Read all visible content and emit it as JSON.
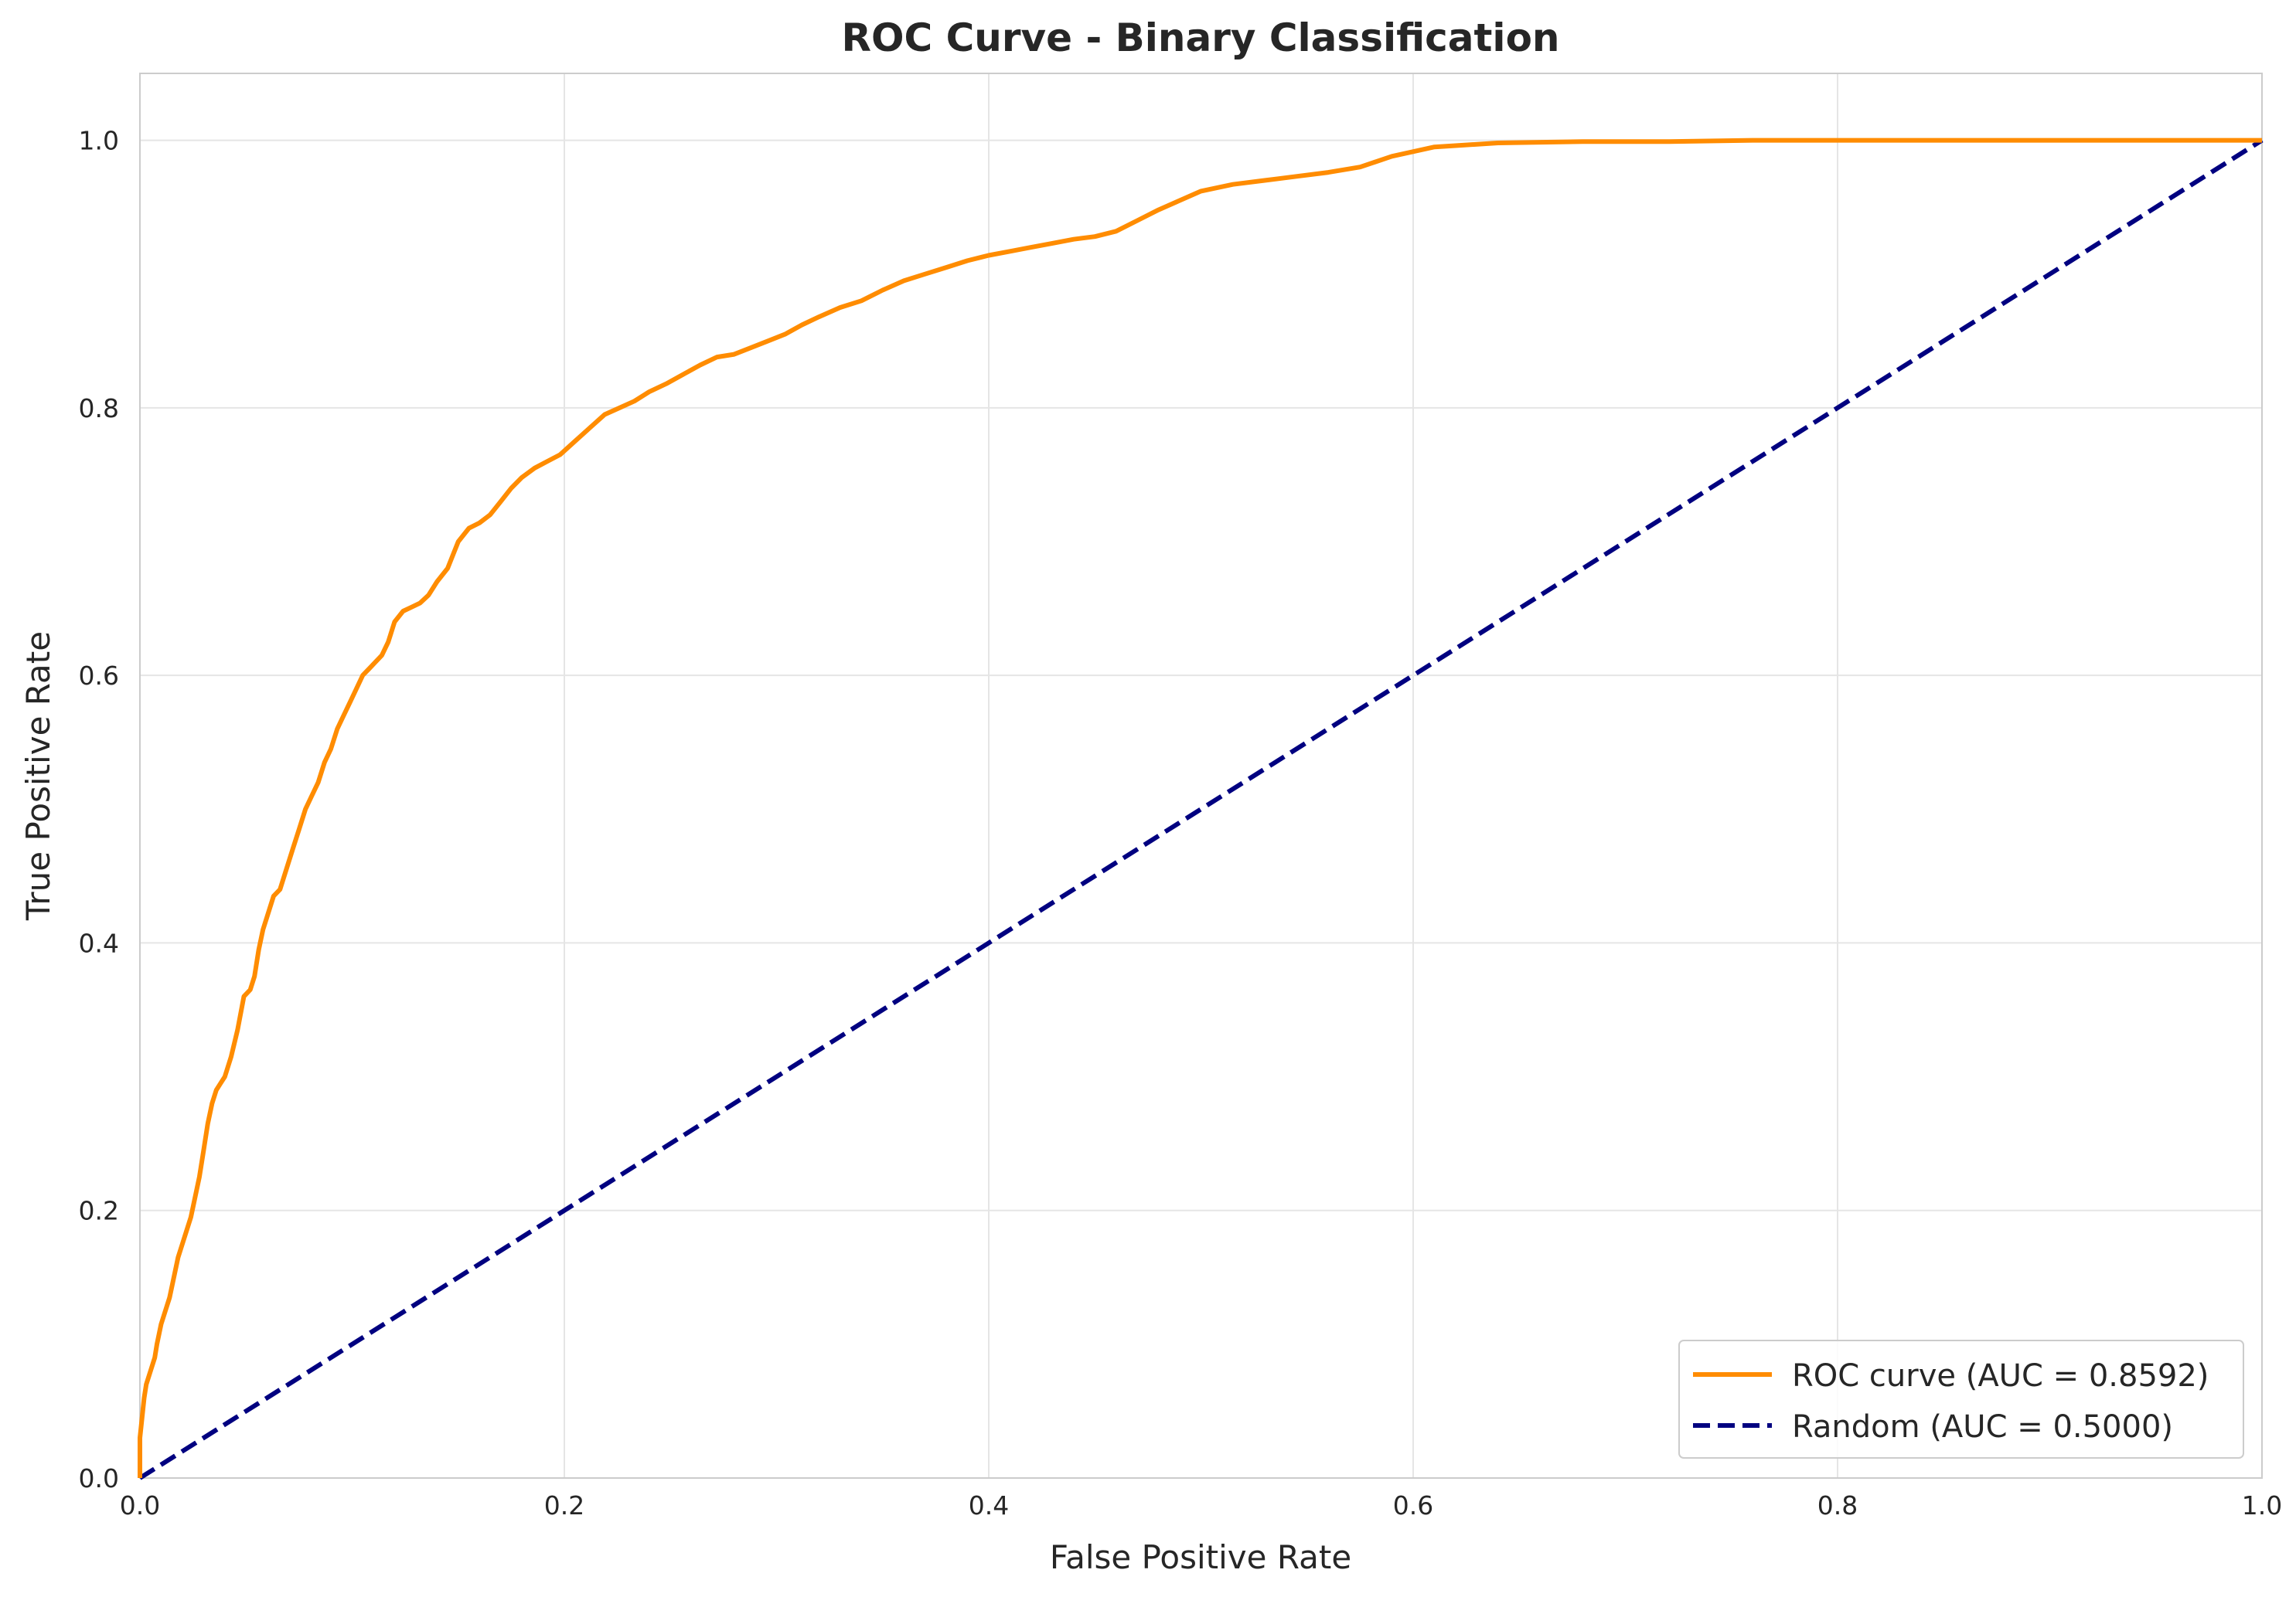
{
  "chart_data": {
    "type": "line",
    "title": "ROC Curve - Binary Classification",
    "xlabel": "False Positive Rate",
    "ylabel": "True Positive Rate",
    "xlim": [
      0.0,
      1.0
    ],
    "ylim": [
      0.0,
      1.05
    ],
    "xticks": [
      "0.0",
      "0.2",
      "0.4",
      "0.6",
      "0.8",
      "1.0"
    ],
    "yticks": [
      "0.0",
      "0.2",
      "0.4",
      "0.6",
      "0.8",
      "1.0"
    ],
    "grid": true,
    "legend_position": "lower right",
    "series": [
      {
        "name": "ROC curve (AUC = 0.8592)",
        "color": "#ff8c00",
        "style": "solid",
        "x": [
          0.0,
          0.0,
          0.002,
          0.003,
          0.005,
          0.007,
          0.008,
          0.01,
          0.012,
          0.014,
          0.016,
          0.018,
          0.02,
          0.022,
          0.024,
          0.026,
          0.028,
          0.03,
          0.032,
          0.034,
          0.036,
          0.038,
          0.04,
          0.043,
          0.046,
          0.049,
          0.052,
          0.054,
          0.056,
          0.058,
          0.06,
          0.063,
          0.066,
          0.069,
          0.072,
          0.075,
          0.078,
          0.081,
          0.084,
          0.087,
          0.09,
          0.093,
          0.096,
          0.099,
          0.102,
          0.105,
          0.108,
          0.111,
          0.114,
          0.117,
          0.12,
          0.124,
          0.128,
          0.132,
          0.136,
          0.14,
          0.145,
          0.15,
          0.155,
          0.16,
          0.165,
          0.17,
          0.175,
          0.18,
          0.186,
          0.192,
          0.198,
          0.205,
          0.212,
          0.219,
          0.226,
          0.233,
          0.24,
          0.248,
          0.256,
          0.264,
          0.272,
          0.28,
          0.288,
          0.296,
          0.304,
          0.312,
          0.32,
          0.33,
          0.34,
          0.35,
          0.36,
          0.37,
          0.38,
          0.39,
          0.4,
          0.41,
          0.42,
          0.43,
          0.44,
          0.45,
          0.46,
          0.47,
          0.48,
          0.49,
          0.5,
          0.515,
          0.53,
          0.545,
          0.56,
          0.575,
          0.59,
          0.61,
          0.64,
          0.68,
          0.72,
          0.76,
          0.85,
          1.0
        ],
        "y": [
          0.0,
          0.03,
          0.06,
          0.07,
          0.08,
          0.09,
          0.1,
          0.115,
          0.125,
          0.135,
          0.15,
          0.165,
          0.175,
          0.185,
          0.195,
          0.21,
          0.225,
          0.245,
          0.265,
          0.28,
          0.29,
          0.295,
          0.3,
          0.315,
          0.335,
          0.36,
          0.365,
          0.375,
          0.395,
          0.41,
          0.42,
          0.435,
          0.44,
          0.455,
          0.47,
          0.485,
          0.5,
          0.51,
          0.52,
          0.535,
          0.545,
          0.56,
          0.57,
          0.58,
          0.59,
          0.6,
          0.605,
          0.61,
          0.615,
          0.625,
          0.64,
          0.648,
          0.651,
          0.654,
          0.66,
          0.67,
          0.68,
          0.7,
          0.71,
          0.714,
          0.72,
          0.73,
          0.74,
          0.748,
          0.755,
          0.76,
          0.765,
          0.775,
          0.785,
          0.795,
          0.8,
          0.805,
          0.812,
          0.818,
          0.825,
          0.832,
          0.838,
          0.84,
          0.845,
          0.85,
          0.855,
          0.862,
          0.868,
          0.875,
          0.88,
          0.888,
          0.895,
          0.9,
          0.905,
          0.91,
          0.914,
          0.917,
          0.92,
          0.923,
          0.926,
          0.928,
          0.932,
          0.94,
          0.948,
          0.955,
          0.962,
          0.967,
          0.97,
          0.973,
          0.976,
          0.98,
          0.988,
          0.995,
          0.998,
          0.999,
          0.999,
          1.0,
          1.0,
          1.0
        ]
      },
      {
        "name": "Random (AUC = 0.5000)",
        "color": "#000080",
        "style": "dashed",
        "x": [
          0.0,
          1.0
        ],
        "y": [
          0.0,
          1.0
        ]
      }
    ]
  }
}
